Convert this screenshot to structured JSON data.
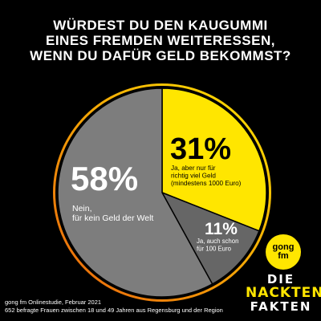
{
  "title_lines": [
    "WÜRDEST DU DEN KAUGUMMI",
    "EINES FREMDEN WEITERESSEN,",
    "WENN DU DAFÜR GELD BEKOMMST?"
  ],
  "colors": {
    "yes_money": "#ffe600",
    "yes_100": "#666666",
    "no": "#7d7d7d",
    "ring_start": "#ffe600",
    "ring_end": "#e8620d",
    "background": "#000000"
  },
  "chart_data": {
    "type": "pie",
    "title": "WÜRDEST DU DEN KAUGUMMI EINES FREMDEN WEITERESSEN, WENN DU DAFÜR GELD BEKOMMST?",
    "slices": [
      {
        "value": 31,
        "label": "31%",
        "description_lines": [
          "Ja, aber nur für",
          "richtig viel Geld",
          "(mindestens 1000 Euro)"
        ],
        "color": "#ffe600"
      },
      {
        "value": 11,
        "label": "11%",
        "description_lines": [
          "Ja, auch schon",
          "für 100 Euro"
        ],
        "color": "#666666"
      },
      {
        "value": 58,
        "label": "58%",
        "description_lines": [
          "Nein,",
          "für kein Geld der Welt"
        ],
        "color": "#7d7d7d"
      }
    ]
  },
  "source": {
    "line1": "gong fm Onlinestudie, Februar 2021",
    "line2": "652 befragte Frauen zwischen 18 und 49 Jahren aus Regensburg und der Region"
  },
  "logos": {
    "gong_line1": "gong",
    "gong_line2": "fm",
    "nf_line1": "DIE",
    "nf_line2": "NACKTEN",
    "nf_line3": "FAKTEN"
  }
}
